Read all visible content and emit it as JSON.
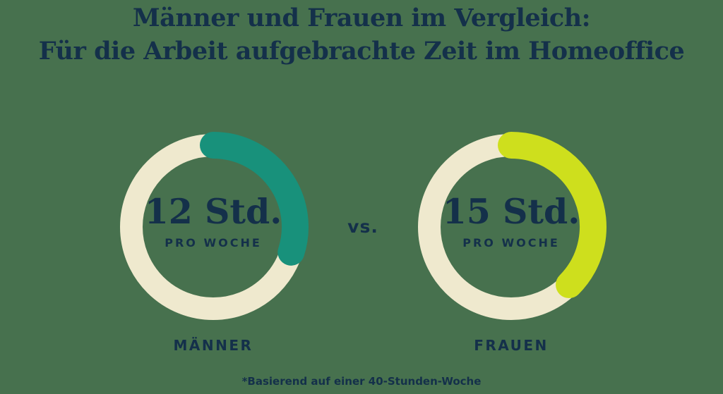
{
  "page": {
    "background_color": "#47714E",
    "text_color": "#14304A"
  },
  "title": {
    "line1": "Männer und Frauen im Vergleich:",
    "line2": "Für die Arbeit aufgebrachte Zeit im Homeoffice"
  },
  "vs_label": "vs.",
  "footnote": "*Basierend auf einer 40-Stunden-Woche",
  "chart_data": {
    "type": "donut",
    "title": "Männer und Frauen im Vergleich: Für die Arbeit aufgebrachte Zeit im Homeoffice",
    "subtitle_note": "*Basierend auf einer 40-Stunden-Woche",
    "total_hours_basis": 40,
    "track_color": "#EFE9CE",
    "arc_start_angle_deg": 0,
    "arc_direction": "clockwise",
    "series": [
      {
        "category": "MÄNNER",
        "hours_per_week": 12,
        "fraction_of_basis": 0.3,
        "arc_degrees": 108,
        "value_label": "12 Std.",
        "unit_label": "PRO WOCHE",
        "arc_color": "#18917B"
      },
      {
        "category": "FRAUEN",
        "hours_per_week": 15,
        "fraction_of_basis": 0.375,
        "arc_degrees": 135,
        "value_label": "15 Std.",
        "unit_label": "PRO WOCHE",
        "arc_color": "#CEDF1D"
      }
    ]
  }
}
